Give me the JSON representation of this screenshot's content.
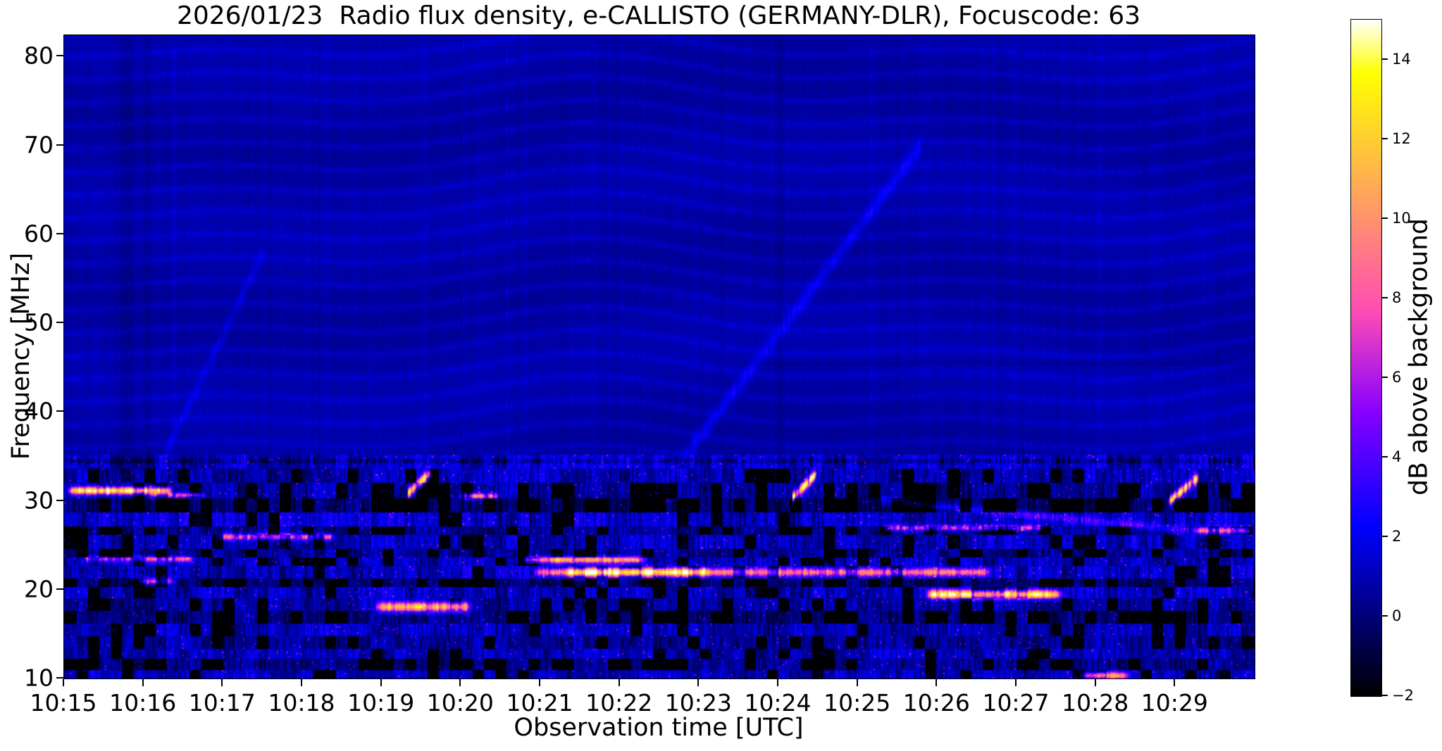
{
  "chart_data": {
    "type": "heatmap",
    "title": "2026/01/23  Radio flux density, e-CALLISTO (GERMANY-DLR), Focuscode: 63",
    "xlabel": "Observation time [UTC]",
    "ylabel": "Frequency [MHz]",
    "x_range_minutes": [
      0,
      15
    ],
    "x_ticks": [
      {
        "label": "10:15",
        "minute": 0
      },
      {
        "label": "10:16",
        "minute": 1
      },
      {
        "label": "10:17",
        "minute": 2
      },
      {
        "label": "10:18",
        "minute": 3
      },
      {
        "label": "10:19",
        "minute": 4
      },
      {
        "label": "10:20",
        "minute": 5
      },
      {
        "label": "10:21",
        "minute": 6
      },
      {
        "label": "10:22",
        "minute": 7
      },
      {
        "label": "10:23",
        "minute": 8
      },
      {
        "label": "10:24",
        "minute": 9
      },
      {
        "label": "10:25",
        "minute": 10
      },
      {
        "label": "10:26",
        "minute": 11
      },
      {
        "label": "10:27",
        "minute": 12
      },
      {
        "label": "10:28",
        "minute": 13
      },
      {
        "label": "10:29",
        "minute": 14
      }
    ],
    "y_range_mhz": [
      10,
      82.4
    ],
    "y_ticks": [
      {
        "label": "80",
        "value": 80
      },
      {
        "label": "70",
        "value": 70
      },
      {
        "label": "60",
        "value": 60
      },
      {
        "label": "50",
        "value": 50
      },
      {
        "label": "40",
        "value": 40
      },
      {
        "label": "30",
        "value": 30
      },
      {
        "label": "20",
        "value": 20
      },
      {
        "label": "10",
        "value": 10
      }
    ],
    "colorbar": {
      "label": "dB above background",
      "range": [
        -2,
        15
      ],
      "ticks": [
        {
          "label": "14",
          "value": 14
        },
        {
          "label": "12",
          "value": 12
        },
        {
          "label": "10",
          "value": 10
        },
        {
          "label": "8",
          "value": 8
        },
        {
          "label": "6",
          "value": 6
        },
        {
          "label": "4",
          "value": 4
        },
        {
          "label": "2",
          "value": 2
        },
        {
          "label": "0",
          "value": 0
        },
        {
          "label": "−2",
          "value": -2
        }
      ],
      "stops": [
        [
          0.0,
          "#000000"
        ],
        [
          0.25,
          "#0000ff"
        ],
        [
          0.42,
          "#8700ff"
        ],
        [
          0.57,
          "#ff4db3"
        ],
        [
          0.7,
          "#ff8f70"
        ],
        [
          0.92,
          "#ffff00"
        ],
        [
          1.0,
          "#ffffff"
        ]
      ]
    },
    "background_level_db": 0.85,
    "bands": [
      {
        "f0": 33.5,
        "f1": 35.2,
        "base": 1.4,
        "noise": 0.8,
        "black": 0.02
      },
      {
        "f0": 32.0,
        "f1": 33.5,
        "base": 0.7,
        "noise": 1.0,
        "black": 0.18
      },
      {
        "f0": 30.2,
        "f1": 32.0,
        "base": 0.4,
        "noise": 1.0,
        "black": 0.3
      },
      {
        "f0": 28.7,
        "f1": 30.2,
        "base": -0.6,
        "noise": 0.9,
        "black": 0.45
      },
      {
        "f0": 27.1,
        "f1": 28.7,
        "base": 1.3,
        "noise": 1.0,
        "black": 0.12
      },
      {
        "f0": 26.1,
        "f1": 27.1,
        "base": 0.1,
        "noise": 0.9,
        "black": 0.35
      },
      {
        "f0": 24.5,
        "f1": 26.1,
        "base": 1.0,
        "noise": 1.0,
        "black": 0.15
      },
      {
        "f0": 23.6,
        "f1": 24.5,
        "base": 0.2,
        "noise": 0.9,
        "black": 0.3
      },
      {
        "f0": 22.7,
        "f1": 23.6,
        "base": 0.9,
        "noise": 1.0,
        "black": 0.18
      },
      {
        "f0": 21.2,
        "f1": 22.7,
        "base": 1.1,
        "noise": 1.0,
        "black": 0.15
      },
      {
        "f0": 20.2,
        "f1": 21.2,
        "base": -0.4,
        "noise": 0.9,
        "black": 0.4
      },
      {
        "f0": 18.9,
        "f1": 20.2,
        "base": 1.0,
        "noise": 1.0,
        "black": 0.15
      },
      {
        "f0": 17.5,
        "f1": 18.9,
        "base": 0.5,
        "noise": 0.9,
        "black": 0.25
      },
      {
        "f0": 16.1,
        "f1": 17.5,
        "base": -0.2,
        "noise": 0.9,
        "black": 0.38
      },
      {
        "f0": 14.7,
        "f1": 16.1,
        "base": 1.0,
        "noise": 0.9,
        "black": 0.15
      },
      {
        "f0": 13.3,
        "f1": 14.7,
        "base": 0.3,
        "noise": 0.9,
        "black": 0.28
      },
      {
        "f0": 12.1,
        "f1": 13.3,
        "base": 0.9,
        "noise": 0.9,
        "black": 0.16
      },
      {
        "f0": 10.9,
        "f1": 12.1,
        "base": -0.1,
        "noise": 0.9,
        "black": 0.35
      },
      {
        "f0": 10.0,
        "f1": 10.9,
        "base": 1.0,
        "noise": 0.9,
        "black": 0.12
      }
    ],
    "features": {
      "horizontal": [
        {
          "t0": 0.02,
          "t1": 1.38,
          "f": 31.1,
          "df": 0.42,
          "amp": 13
        },
        {
          "t0": 0.2,
          "t1": 1.65,
          "f": 23.4,
          "df": 0.33,
          "amp": 6,
          "dashed": 1
        },
        {
          "t0": 0.9,
          "t1": 1.4,
          "f": 20.9,
          "df": 0.35,
          "amp": 7,
          "dashed": 1
        },
        {
          "t0": 1.05,
          "t1": 1.8,
          "f": 30.6,
          "df": 0.3,
          "amp": 6,
          "dashed": 1
        },
        {
          "t0": 1.9,
          "t1": 3.45,
          "f": 25.9,
          "df": 0.38,
          "amp": 6.5,
          "dashed": 1
        },
        {
          "t0": 3.9,
          "t1": 5.15,
          "f": 18.0,
          "df": 0.55,
          "amp": 10.5
        },
        {
          "t0": 4.95,
          "t1": 5.5,
          "f": 30.5,
          "df": 0.33,
          "amp": 8,
          "dashed": 1
        },
        {
          "t0": 5.75,
          "t1": 7.35,
          "f": 23.3,
          "df": 0.36,
          "amp": 9
        },
        {
          "t0": 5.9,
          "t1": 11.7,
          "f": 21.9,
          "df": 0.45,
          "amp": 7.5
        },
        {
          "t0": 6.3,
          "t1": 8.15,
          "f": 21.9,
          "df": 0.5,
          "amp": 7
        },
        {
          "t0": 10.3,
          "t1": 12.4,
          "f": 26.9,
          "df": 0.3,
          "amp": 6.5,
          "dashed": 1
        },
        {
          "t0": 10.85,
          "t1": 12.6,
          "f": 19.4,
          "df": 0.5,
          "amp": 11.5
        },
        {
          "t0": 12.8,
          "t1": 13.45,
          "f": 10.25,
          "df": 0.4,
          "amp": 10
        },
        {
          "t0": 14.2,
          "t1": 15.0,
          "f": 26.6,
          "df": 0.4,
          "amp": 8.5
        }
      ],
      "rising": [
        {
          "t0": 4.33,
          "t1": 4.62,
          "f0": 30.8,
          "f1": 33.2,
          "amp": 11
        },
        {
          "t0": 9.18,
          "t1": 9.48,
          "f0": 30.3,
          "f1": 33.0,
          "amp": 12
        },
        {
          "t0": 13.92,
          "t1": 14.3,
          "f0": 29.8,
          "f1": 32.6,
          "amp": 11
        }
      ],
      "diagonal": [
        {
          "t0": 7.4,
          "t1": 10.8,
          "f0": 30,
          "f1": 70,
          "amp": 1.6,
          "w": 1.0
        },
        {
          "t0": 1.25,
          "t1": 2.5,
          "f0": 35,
          "f1": 58,
          "amp": 1.1,
          "w": 0.9
        },
        {
          "t0": 10.3,
          "t1": 14.2,
          "f0": 30,
          "f1": 26.6,
          "amp": 3.2,
          "w": 0.45
        }
      ],
      "dark_columns": [
        {
          "t": 0.78,
          "w": 0.09,
          "depth": 0.5
        },
        {
          "t": 1.05,
          "w": 0.06,
          "depth": 0.45
        },
        {
          "t": 9.03,
          "w": 0.05,
          "depth": 0.35
        }
      ],
      "dark_rows": [
        {
          "f": 45.5,
          "t0": 8.55,
          "t1": 15,
          "depth": 0.45
        }
      ],
      "dashed_dark_row_mhz": 34.45
    }
  }
}
